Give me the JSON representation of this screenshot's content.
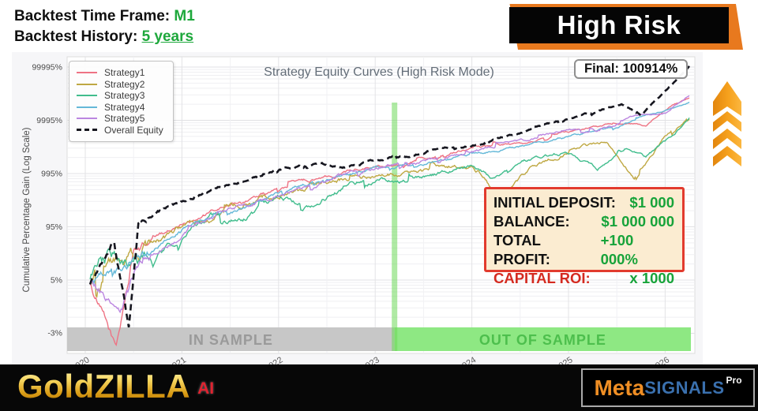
{
  "header": {
    "timeframe_label": "Backtest Time Frame:",
    "timeframe_value": "M1",
    "history_label": "Backtest History:",
    "history_value": "5 years",
    "risk_banner": "High Risk"
  },
  "chart": {
    "title": "Strategy Equity Curves (High Risk Mode)",
    "final_label": "Final: 100914%",
    "y_axis_title": "Cumulative Percentage Gain (Log Scale)",
    "y_ticks": [
      "99995%",
      "9995%",
      "995%",
      "95%",
      "5%",
      "-3%"
    ],
    "y_tick_values": [
      99995,
      9995,
      995,
      95,
      5,
      -3
    ],
    "x_ticks": [
      "2020",
      "2021",
      "2022",
      "2023",
      "2024",
      "2025",
      "2026"
    ],
    "in_sample_label": "IN SAMPLE",
    "out_of_sample_label": "OUT OF SAMPLE",
    "legend": [
      {
        "label": "Strategy1",
        "color": "#ee7384",
        "dashed": false
      },
      {
        "label": "Strategy2",
        "color": "#bfa843",
        "dashed": false
      },
      {
        "label": "Strategy3",
        "color": "#41bd8d",
        "dashed": false
      },
      {
        "label": "Strategy4",
        "color": "#64b8d8",
        "dashed": false
      },
      {
        "label": "Strategy5",
        "color": "#bb86e0",
        "dashed": false
      },
      {
        "label": "Overall Equity",
        "color": "#16161f",
        "dashed": true
      }
    ]
  },
  "chart_data": {
    "type": "line",
    "title": "Strategy Equity Curves (High Risk Mode)",
    "ylabel": "Cumulative Percentage Gain (Log Scale)",
    "y_scale": "log(gain%+5)",
    "x_range": [
      2020,
      2026.3
    ],
    "x_tick_years": [
      2020,
      2021,
      2022,
      2023,
      2024,
      2025,
      2026
    ],
    "y_tick_pcts": [
      99995,
      9995,
      995,
      95,
      5,
      -3
    ],
    "split_year": 2023.2,
    "in_sample_range": [
      2020,
      2023.2
    ],
    "out_of_sample_range": [
      2023.2,
      2026.3
    ],
    "final_overall_gain_pct": 100914,
    "legend_position": "upper-left",
    "grid": true,
    "series": [
      {
        "name": "Strategy1",
        "color": "#ee7384",
        "anchors": [
          [
            2020.05,
            4
          ],
          [
            2020.32,
            -4.5
          ],
          [
            2020.5,
            30
          ],
          [
            2021,
            110
          ],
          [
            2021.5,
            250
          ],
          [
            2022,
            520
          ],
          [
            2022.5,
            900
          ],
          [
            2023,
            1400
          ],
          [
            2023.3,
            1600
          ],
          [
            2024,
            3000
          ],
          [
            2024.5,
            3500
          ],
          [
            2025,
            6000
          ],
          [
            2025.5,
            9000
          ],
          [
            2025.8,
            8000
          ],
          [
            2026.1,
            20000
          ],
          [
            2026.25,
            26000
          ]
        ]
      },
      {
        "name": "Strategy2",
        "color": "#bfa843",
        "anchors": [
          [
            2020.05,
            4
          ],
          [
            2020.4,
            15
          ],
          [
            2021,
            80
          ],
          [
            2021.5,
            200
          ],
          [
            2022,
            400
          ],
          [
            2022.5,
            700
          ],
          [
            2023,
            900
          ],
          [
            2023.5,
            1100
          ],
          [
            2024,
            1500
          ],
          [
            2024.3,
            300
          ],
          [
            2024.6,
            1200
          ],
          [
            2025,
            2500
          ],
          [
            2025.4,
            4000
          ],
          [
            2025.7,
            700
          ],
          [
            2026,
            5000
          ],
          [
            2026.25,
            12000
          ]
        ]
      },
      {
        "name": "Strategy3",
        "color": "#41bd8d",
        "anchors": [
          [
            2020.05,
            4
          ],
          [
            2020.3,
            25
          ],
          [
            2020.45,
            8
          ],
          [
            2021,
            60
          ],
          [
            2021.3,
            150
          ],
          [
            2021.6,
            120
          ],
          [
            2022,
            350
          ],
          [
            2022.3,
            250
          ],
          [
            2022.6,
            500
          ],
          [
            2023,
            800
          ],
          [
            2023.4,
            700
          ],
          [
            2023.8,
            1200
          ],
          [
            2024,
            1500
          ],
          [
            2024.2,
            800
          ],
          [
            2024.5,
            1800
          ],
          [
            2025,
            2500
          ],
          [
            2025.3,
            1200
          ],
          [
            2025.6,
            3000
          ],
          [
            2025.8,
            2000
          ],
          [
            2026,
            4000
          ],
          [
            2026.25,
            11000
          ]
        ]
      },
      {
        "name": "Strategy4",
        "color": "#64b8d8",
        "anchors": [
          [
            2020.05,
            4
          ],
          [
            2020.4,
            12
          ],
          [
            2021,
            90
          ],
          [
            2021.5,
            180
          ],
          [
            2022,
            420
          ],
          [
            2022.5,
            800
          ],
          [
            2023,
            1200
          ],
          [
            2023.5,
            1500
          ],
          [
            2024,
            2200
          ],
          [
            2024.5,
            3200
          ],
          [
            2025,
            5000
          ],
          [
            2025.5,
            8000
          ],
          [
            2026,
            15000
          ],
          [
            2026.25,
            22000
          ]
        ]
      },
      {
        "name": "Strategy5",
        "color": "#bb86e0",
        "anchors": [
          [
            2020.05,
            4
          ],
          [
            2020.35,
            -2.5
          ],
          [
            2020.6,
            20
          ],
          [
            2021,
            70
          ],
          [
            2021.4,
            200
          ],
          [
            2022,
            380
          ],
          [
            2022.5,
            750
          ],
          [
            2023,
            1300
          ],
          [
            2023.3,
            1500
          ],
          [
            2024,
            2600
          ],
          [
            2024.5,
            4000
          ],
          [
            2025,
            7000
          ],
          [
            2025.3,
            6000
          ],
          [
            2025.7,
            12000
          ],
          [
            2026,
            14000
          ],
          [
            2026.25,
            30000
          ]
        ]
      },
      {
        "name": "Overall Equity",
        "color": "#16161f",
        "dashed": true,
        "anchors": [
          [
            2020.05,
            4
          ],
          [
            2020.3,
            60
          ],
          [
            2020.45,
            -3.5
          ],
          [
            2020.55,
            120
          ],
          [
            2021,
            300
          ],
          [
            2021.5,
            650
          ],
          [
            2022,
            1200
          ],
          [
            2022.4,
            1500
          ],
          [
            2022.7,
            1300
          ],
          [
            2023,
            1900
          ],
          [
            2023.3,
            2100
          ],
          [
            2023.6,
            2800
          ],
          [
            2024,
            3400
          ],
          [
            2024.5,
            6000
          ],
          [
            2025,
            11000
          ],
          [
            2025.3,
            15000
          ],
          [
            2025.55,
            20000
          ],
          [
            2025.75,
            12000
          ],
          [
            2026,
            35000
          ],
          [
            2026.25,
            100914
          ]
        ]
      }
    ]
  },
  "stats": {
    "rows": [
      {
        "label": "INITIAL DEPOSIT:",
        "value": "$1 000",
        "emphasis": false
      },
      {
        "label": "BALANCE:",
        "value": "$1 000 000",
        "emphasis": false
      },
      {
        "label": "TOTAL PROFIT:",
        "value": "+100 000%",
        "emphasis": false
      },
      {
        "label": "CAPITAL ROI:",
        "value": "x 1000",
        "emphasis": true
      }
    ]
  },
  "footer": {
    "brand": "GoldZILLA",
    "brand_suffix": "AI",
    "partner_prefix": "Meta",
    "partner_mid": "SIGNALS",
    "partner_suffix": "Pro"
  },
  "colors": {
    "accent_green": "#1ea83c",
    "risk_orange": "#e8791e",
    "stats_border_red": "#e23b2e",
    "stats_bg_cream": "#fbecd1",
    "in_sample_band": "#c7c7c7",
    "in_sample_text": "#9a9a9a",
    "out_sample_band": "#8ee883",
    "out_sample_text": "#4dbf4d",
    "split_line_green": "#6ed95a",
    "arrow_orange": "#f6a21e",
    "arrow_orange_dark": "#e3860d",
    "gold": "#d89a14",
    "partner_blue": "#3a70ae",
    "partner_orange": "#ef8e24"
  }
}
